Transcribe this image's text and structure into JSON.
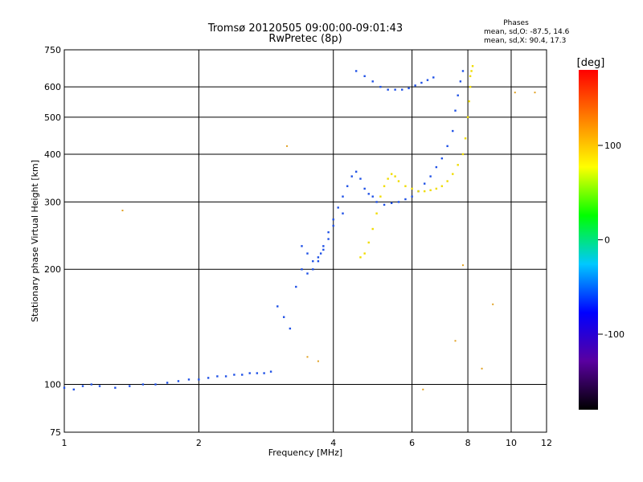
{
  "chart_data": {
    "type": "scatter",
    "title": "Tromsø 20120505 09:00:00-09:01:43",
    "subtitle": "RwPretec (8p)",
    "xlabel": "Frequency [MHz]",
    "ylabel": "Stationary phase Virtual Height [km]",
    "x_scale": "log",
    "y_scale": "log",
    "xlim": [
      1,
      12
    ],
    "ylim": [
      75,
      750
    ],
    "x_ticks": [
      1,
      2,
      4,
      6,
      8,
      10,
      12
    ],
    "y_ticks": [
      75,
      100,
      200,
      300,
      400,
      500,
      600,
      750
    ],
    "grid": true,
    "phases_box": {
      "title": "Phases",
      "line1": "mean, sd,O: -87.5, 14.6",
      "line2": "mean, sd,X:  90.4, 17.3"
    },
    "colorbar": {
      "label": "[deg]",
      "ticks": [
        "100",
        "0",
        "-100"
      ],
      "tick_values": [
        100,
        0,
        -100
      ],
      "range": [
        -180,
        180
      ],
      "colors": [
        "#000000",
        "#5a00a0",
        "#0000ff",
        "#00c8ff",
        "#00ff00",
        "#ffff00",
        "#ff8000",
        "#ff0000"
      ]
    },
    "series": [
      {
        "mode": "O",
        "color": "#1e50e6",
        "x": [
          1.0,
          1.05,
          1.1,
          1.15,
          1.2,
          1.3,
          1.4,
          1.5,
          1.6,
          1.7,
          1.8,
          1.9,
          2.0,
          2.1,
          2.2,
          2.3,
          2.4,
          2.5,
          2.6,
          2.7,
          2.8,
          2.9,
          3.0,
          3.1,
          3.2,
          3.3,
          3.4,
          3.5,
          3.6,
          3.7,
          3.75,
          3.8,
          3.9,
          4.0,
          4.1,
          4.2,
          4.3,
          4.4,
          4.5,
          4.6,
          4.7,
          4.8,
          4.9,
          5.0,
          5.2,
          5.4,
          5.6,
          5.8,
          6.0,
          6.2,
          6.4,
          6.6,
          6.8,
          7.0,
          7.2,
          7.4,
          7.5,
          7.6,
          7.7,
          7.8,
          4.5,
          4.7,
          4.9,
          5.1,
          5.3,
          5.5,
          5.7,
          5.9,
          6.1,
          6.3,
          6.5,
          6.7,
          3.4,
          3.5,
          3.6,
          3.7,
          3.8,
          3.9,
          4.0,
          4.2
        ],
        "y": [
          98,
          97,
          99,
          100,
          99,
          98,
          99,
          100,
          100,
          101,
          102,
          103,
          103,
          104,
          105,
          105,
          106,
          106,
          107,
          107,
          107,
          108,
          160,
          150,
          140,
          180,
          200,
          195,
          200,
          210,
          220,
          230,
          250,
          270,
          290,
          310,
          330,
          350,
          360,
          345,
          325,
          315,
          310,
          300,
          295,
          298,
          300,
          305,
          310,
          320,
          335,
          350,
          370,
          390,
          420,
          460,
          520,
          570,
          620,
          660,
          660,
          640,
          620,
          600,
          590,
          590,
          590,
          595,
          605,
          615,
          625,
          635,
          230,
          220,
          210,
          215,
          225,
          240,
          260,
          280
        ]
      },
      {
        "mode": "X",
        "color": "#f0dc00",
        "x": [
          4.6,
          4.7,
          4.8,
          4.9,
          5.0,
          5.1,
          5.2,
          5.3,
          5.4,
          5.5,
          5.6,
          5.8,
          6.0,
          6.2,
          6.4,
          6.6,
          6.8,
          7.0,
          7.2,
          7.4,
          7.6,
          7.8,
          7.9,
          8.0,
          8.05,
          8.1,
          8.1,
          8.15,
          8.2
        ],
        "y": [
          215,
          220,
          235,
          255,
          280,
          310,
          330,
          345,
          355,
          350,
          340,
          330,
          325,
          320,
          320,
          322,
          325,
          330,
          340,
          355,
          375,
          400,
          440,
          500,
          550,
          600,
          640,
          660,
          680
        ]
      }
    ],
    "annotations": [
      {
        "x": 1.35,
        "y": 285
      },
      {
        "x": 3.15,
        "y": 420
      },
      {
        "x": 3.7,
        "y": 115
      },
      {
        "x": 3.5,
        "y": 118
      },
      {
        "x": 6.35,
        "y": 97
      },
      {
        "x": 8.6,
        "y": 110
      },
      {
        "x": 9.1,
        "y": 162
      },
      {
        "x": 10.2,
        "y": 580
      },
      {
        "x": 11.3,
        "y": 580
      },
      {
        "x": 7.8,
        "y": 205
      },
      {
        "x": 7.5,
        "y": 130
      }
    ]
  }
}
